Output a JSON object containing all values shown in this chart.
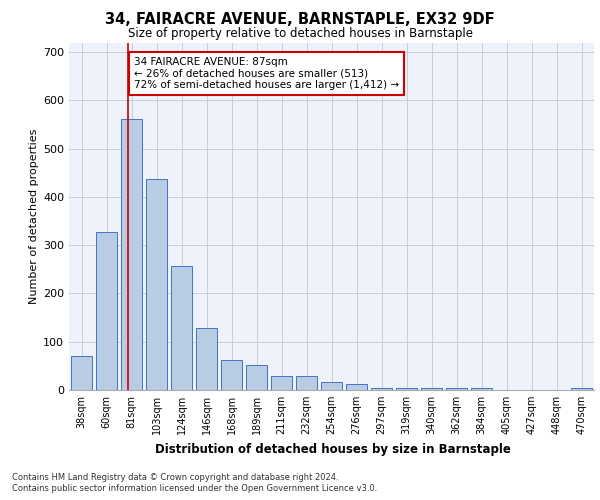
{
  "title": "34, FAIRACRE AVENUE, BARNSTAPLE, EX32 9DF",
  "subtitle": "Size of property relative to detached houses in Barnstaple",
  "xlabel": "Distribution of detached houses by size in Barnstaple",
  "ylabel": "Number of detached properties",
  "categories": [
    "38sqm",
    "60sqm",
    "81sqm",
    "103sqm",
    "124sqm",
    "146sqm",
    "168sqm",
    "189sqm",
    "211sqm",
    "232sqm",
    "254sqm",
    "276sqm",
    "297sqm",
    "319sqm",
    "340sqm",
    "362sqm",
    "384sqm",
    "405sqm",
    "427sqm",
    "448sqm",
    "470sqm"
  ],
  "values": [
    70,
    328,
    562,
    437,
    257,
    128,
    63,
    52,
    28,
    28,
    16,
    12,
    5,
    5,
    5,
    5,
    5,
    0,
    0,
    0,
    5
  ],
  "bar_color": "#b8cce4",
  "bar_edge_color": "#4472c4",
  "background_color": "#eef2fa",
  "grid_color": "#c8cdd8",
  "annotation_text": "34 FAIRACRE AVENUE: 87sqm\n← 26% of detached houses are smaller (513)\n72% of semi-detached houses are larger (1,412) →",
  "annotation_box_color": "#ffffff",
  "annotation_box_edge": "#cc0000",
  "vline_color": "#cc0000",
  "vline_x": 1.87,
  "ylim": [
    0,
    720
  ],
  "yticks": [
    0,
    100,
    200,
    300,
    400,
    500,
    600,
    700
  ],
  "footer_line1": "Contains HM Land Registry data © Crown copyright and database right 2024.",
  "footer_line2": "Contains public sector information licensed under the Open Government Licence v3.0."
}
